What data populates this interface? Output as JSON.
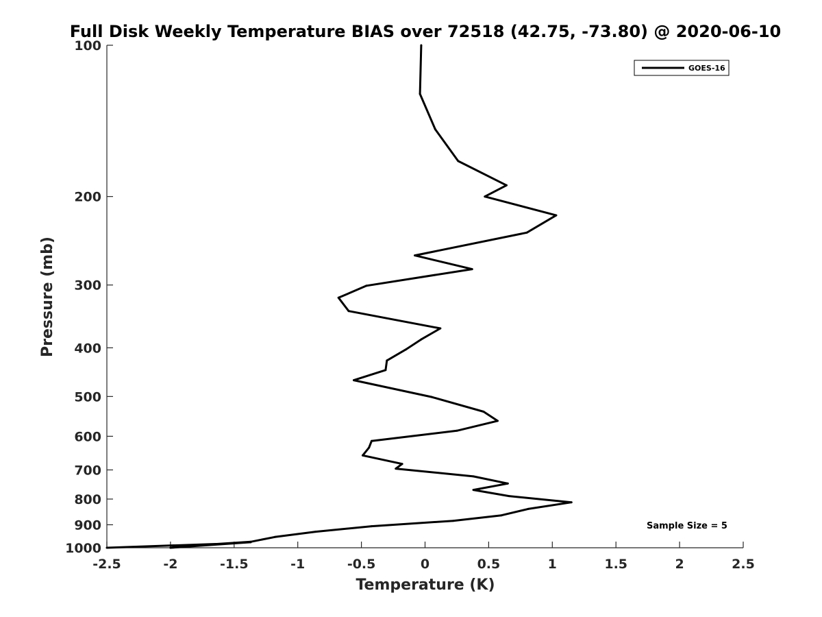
{
  "chart_data": {
    "type": "line",
    "title": "Full Disk Weekly Temperature BIAS over 72518 (42.75, -73.80) @ 2020-06-10",
    "xlabel": "Temperature (K)",
    "ylabel": "Pressure (mb)",
    "xlim": [
      -2.5,
      2.5
    ],
    "ylim": [
      1000,
      100
    ],
    "yscale": "log",
    "x_ticks": [
      -2.5,
      -2,
      -1.5,
      -1,
      -0.5,
      0,
      0.5,
      1,
      1.5,
      2,
      2.5
    ],
    "x_tick_labels": [
      "-2.5",
      "-2",
      "-1.5",
      "-1",
      "-0.5",
      "0",
      "0.5",
      "1",
      "1.5",
      "2",
      "2.5"
    ],
    "y_ticks": [
      100,
      200,
      300,
      400,
      500,
      600,
      700,
      800,
      900,
      1000
    ],
    "y_tick_labels": [
      "100",
      "200",
      "300",
      "400",
      "500",
      "600",
      "700",
      "800",
      "900",
      "1000"
    ],
    "grid": false,
    "legend_position": "top-right",
    "annotation": "Sample Size = 5",
    "series": [
      {
        "name": "GOES-16",
        "color": "#000000",
        "points": [
          {
            "x": -0.03,
            "p": 100
          },
          {
            "x": -0.04,
            "p": 125
          },
          {
            "x": 0.08,
            "p": 147
          },
          {
            "x": 0.26,
            "p": 170
          },
          {
            "x": 0.64,
            "p": 190
          },
          {
            "x": 0.47,
            "p": 200
          },
          {
            "x": 1.03,
            "p": 218
          },
          {
            "x": 0.8,
            "p": 236
          },
          {
            "x": -0.08,
            "p": 262
          },
          {
            "x": 0.37,
            "p": 279
          },
          {
            "x": -0.46,
            "p": 301
          },
          {
            "x": -0.68,
            "p": 318
          },
          {
            "x": -0.6,
            "p": 338
          },
          {
            "x": 0.12,
            "p": 366
          },
          {
            "x": -0.03,
            "p": 385
          },
          {
            "x": -0.15,
            "p": 403
          },
          {
            "x": -0.3,
            "p": 424
          },
          {
            "x": -0.31,
            "p": 443
          },
          {
            "x": -0.56,
            "p": 464
          },
          {
            "x": 0.05,
            "p": 501
          },
          {
            "x": 0.46,
            "p": 536
          },
          {
            "x": 0.57,
            "p": 559
          },
          {
            "x": 0.25,
            "p": 585
          },
          {
            "x": -0.42,
            "p": 613
          },
          {
            "x": -0.44,
            "p": 632
          },
          {
            "x": -0.49,
            "p": 655
          },
          {
            "x": -0.18,
            "p": 681
          },
          {
            "x": -0.23,
            "p": 696
          },
          {
            "x": 0.38,
            "p": 721
          },
          {
            "x": 0.65,
            "p": 745
          },
          {
            "x": 0.38,
            "p": 767
          },
          {
            "x": 0.66,
            "p": 789
          },
          {
            "x": 1.15,
            "p": 812
          },
          {
            "x": 0.81,
            "p": 837
          },
          {
            "x": 0.6,
            "p": 862
          },
          {
            "x": 0.22,
            "p": 884
          },
          {
            "x": -0.42,
            "p": 906
          },
          {
            "x": -0.86,
            "p": 929
          },
          {
            "x": -1.18,
            "p": 952
          },
          {
            "x": -1.37,
            "p": 973
          },
          {
            "x": -1.82,
            "p": 990
          },
          {
            "x": -2.0,
            "p": 1000
          },
          {
            "x": -1.37,
            "p": 975
          },
          {
            "x": -1.51,
            "p": 980
          },
          {
            "x": -2.5,
            "p": 1000
          }
        ]
      }
    ]
  }
}
